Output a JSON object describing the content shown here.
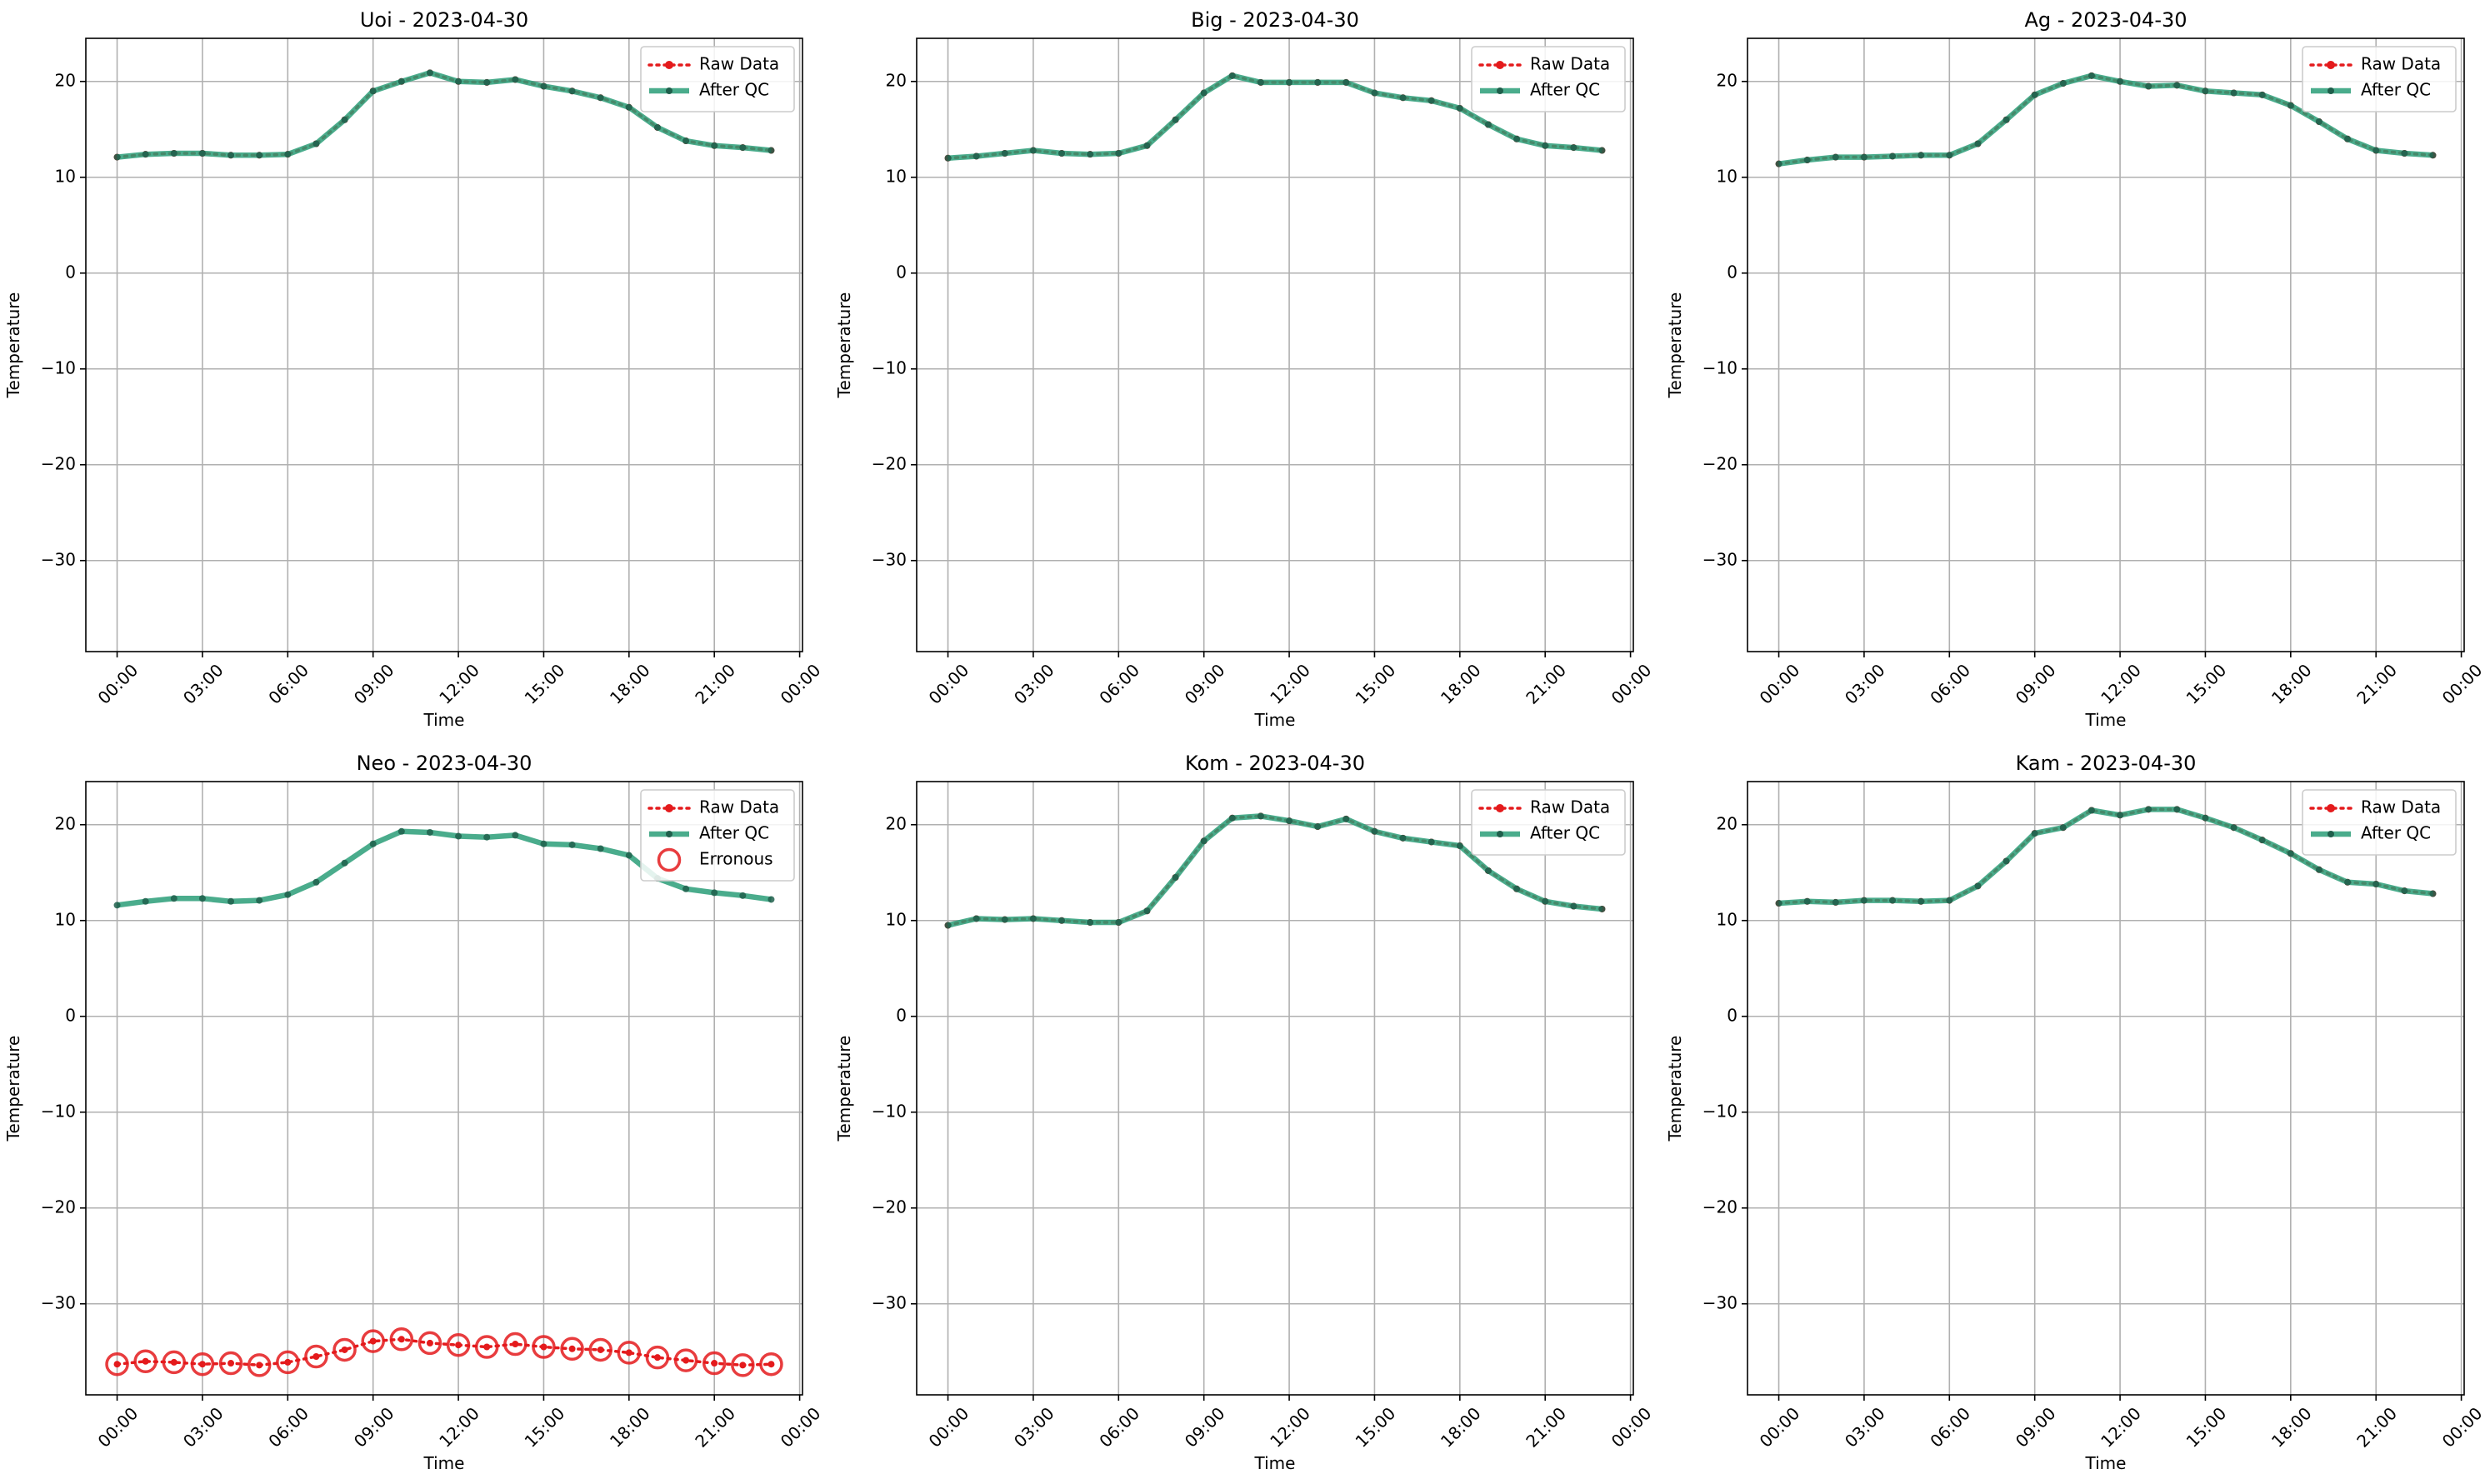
{
  "chart_data": [
    {
      "type": "line",
      "title": "Uoi - 2023-04-30",
      "xlabel": "Time",
      "ylabel": "Temperature",
      "ylim": [
        -39.5,
        24.5
      ],
      "xlim": [
        -1.1,
        24.1
      ],
      "x_ticks": [
        {
          "value": 0,
          "label": "00:00"
        },
        {
          "value": 3,
          "label": "03:00"
        },
        {
          "value": 6,
          "label": "06:00"
        },
        {
          "value": 9,
          "label": "09:00"
        },
        {
          "value": 12,
          "label": "12:00"
        },
        {
          "value": 15,
          "label": "15:00"
        },
        {
          "value": 18,
          "label": "18:00"
        },
        {
          "value": 21,
          "label": "21:00"
        },
        {
          "value": 24,
          "label": "00:00"
        }
      ],
      "y_ticks": [
        {
          "value": 20,
          "label": "20"
        },
        {
          "value": 10,
          "label": "10"
        },
        {
          "value": 0,
          "label": "0"
        },
        {
          "value": -10,
          "label": "−10"
        },
        {
          "value": -20,
          "label": "−20"
        },
        {
          "value": -30,
          "label": "−30"
        }
      ],
      "grid": true,
      "legend_position": "top-right",
      "x": [
        0,
        1,
        2,
        3,
        4,
        5,
        6,
        7,
        8,
        9,
        10,
        11,
        12,
        13,
        14,
        15,
        16,
        17,
        18,
        19,
        20,
        21,
        22,
        23
      ],
      "series": [
        {
          "name": "Raw Data",
          "style": "raw",
          "values": [
            12.1,
            12.4,
            12.5,
            12.5,
            12.3,
            12.3,
            12.4,
            13.5,
            16.0,
            19.0,
            20.0,
            20.9,
            20.0,
            19.9,
            20.2,
            19.5,
            19.0,
            18.3,
            17.3,
            15.2,
            13.8,
            13.3,
            13.1,
            12.8
          ]
        },
        {
          "name": "After QC",
          "style": "qc",
          "values": [
            12.1,
            12.4,
            12.5,
            12.5,
            12.3,
            12.3,
            12.4,
            13.5,
            16.0,
            19.0,
            20.0,
            20.9,
            20.0,
            19.9,
            20.2,
            19.5,
            19.0,
            18.3,
            17.3,
            15.2,
            13.8,
            13.3,
            13.1,
            12.8
          ]
        }
      ]
    },
    {
      "type": "line",
      "title": "Big - 2023-04-30",
      "xlabel": "Time",
      "ylabel": "Temperature",
      "ylim": [
        -39.5,
        24.5
      ],
      "xlim": [
        -1.1,
        24.1
      ],
      "x_ticks": [
        {
          "value": 0,
          "label": "00:00"
        },
        {
          "value": 3,
          "label": "03:00"
        },
        {
          "value": 6,
          "label": "06:00"
        },
        {
          "value": 9,
          "label": "09:00"
        },
        {
          "value": 12,
          "label": "12:00"
        },
        {
          "value": 15,
          "label": "15:00"
        },
        {
          "value": 18,
          "label": "18:00"
        },
        {
          "value": 21,
          "label": "21:00"
        },
        {
          "value": 24,
          "label": "00:00"
        }
      ],
      "y_ticks": [
        {
          "value": 20,
          "label": "20"
        },
        {
          "value": 10,
          "label": "10"
        },
        {
          "value": 0,
          "label": "0"
        },
        {
          "value": -10,
          "label": "−10"
        },
        {
          "value": -20,
          "label": "−20"
        },
        {
          "value": -30,
          "label": "−30"
        }
      ],
      "grid": true,
      "legend_position": "top-right",
      "x": [
        0,
        1,
        2,
        3,
        4,
        5,
        6,
        7,
        8,
        9,
        10,
        11,
        12,
        13,
        14,
        15,
        16,
        17,
        18,
        19,
        20,
        21,
        22,
        23
      ],
      "series": [
        {
          "name": "Raw Data",
          "style": "raw",
          "values": [
            12.0,
            12.2,
            12.5,
            12.8,
            12.5,
            12.4,
            12.5,
            13.3,
            16.0,
            18.8,
            20.6,
            19.9,
            19.9,
            19.9,
            19.9,
            18.8,
            18.3,
            18.0,
            17.2,
            15.5,
            14.0,
            13.3,
            13.1,
            12.8
          ]
        },
        {
          "name": "After QC",
          "style": "qc",
          "values": [
            12.0,
            12.2,
            12.5,
            12.8,
            12.5,
            12.4,
            12.5,
            13.3,
            16.0,
            18.8,
            20.6,
            19.9,
            19.9,
            19.9,
            19.9,
            18.8,
            18.3,
            18.0,
            17.2,
            15.5,
            14.0,
            13.3,
            13.1,
            12.8
          ]
        }
      ]
    },
    {
      "type": "line",
      "title": "Ag - 2023-04-30",
      "xlabel": "Time",
      "ylabel": "Temperature",
      "ylim": [
        -39.5,
        24.5
      ],
      "xlim": [
        -1.1,
        24.1
      ],
      "x_ticks": [
        {
          "value": 0,
          "label": "00:00"
        },
        {
          "value": 3,
          "label": "03:00"
        },
        {
          "value": 6,
          "label": "06:00"
        },
        {
          "value": 9,
          "label": "09:00"
        },
        {
          "value": 12,
          "label": "12:00"
        },
        {
          "value": 15,
          "label": "15:00"
        },
        {
          "value": 18,
          "label": "18:00"
        },
        {
          "value": 21,
          "label": "21:00"
        },
        {
          "value": 24,
          "label": "00:00"
        }
      ],
      "y_ticks": [
        {
          "value": 20,
          "label": "20"
        },
        {
          "value": 10,
          "label": "10"
        },
        {
          "value": 0,
          "label": "0"
        },
        {
          "value": -10,
          "label": "−10"
        },
        {
          "value": -20,
          "label": "−20"
        },
        {
          "value": -30,
          "label": "−30"
        }
      ],
      "grid": true,
      "legend_position": "top-right",
      "x": [
        0,
        1,
        2,
        3,
        4,
        5,
        6,
        7,
        8,
        9,
        10,
        11,
        12,
        13,
        14,
        15,
        16,
        17,
        18,
        19,
        20,
        21,
        22,
        23
      ],
      "series": [
        {
          "name": "Raw Data",
          "style": "raw",
          "values": [
            11.4,
            11.8,
            12.1,
            12.1,
            12.2,
            12.3,
            12.3,
            13.5,
            16.0,
            18.6,
            19.8,
            20.6,
            20.0,
            19.5,
            19.6,
            19.0,
            18.8,
            18.6,
            17.5,
            15.8,
            14.0,
            12.8,
            12.5,
            12.3
          ]
        },
        {
          "name": "After QC",
          "style": "qc",
          "values": [
            11.4,
            11.8,
            12.1,
            12.1,
            12.2,
            12.3,
            12.3,
            13.5,
            16.0,
            18.6,
            19.8,
            20.6,
            20.0,
            19.5,
            19.6,
            19.0,
            18.8,
            18.6,
            17.5,
            15.8,
            14.0,
            12.8,
            12.5,
            12.3
          ]
        }
      ]
    },
    {
      "type": "line",
      "title": "Neo - 2023-04-30",
      "xlabel": "Time",
      "ylabel": "Temperature",
      "ylim": [
        -39.5,
        24.5
      ],
      "xlim": [
        -1.1,
        24.1
      ],
      "x_ticks": [
        {
          "value": 0,
          "label": "00:00"
        },
        {
          "value": 3,
          "label": "03:00"
        },
        {
          "value": 6,
          "label": "06:00"
        },
        {
          "value": 9,
          "label": "09:00"
        },
        {
          "value": 12,
          "label": "12:00"
        },
        {
          "value": 15,
          "label": "15:00"
        },
        {
          "value": 18,
          "label": "18:00"
        },
        {
          "value": 21,
          "label": "21:00"
        },
        {
          "value": 24,
          "label": "00:00"
        }
      ],
      "y_ticks": [
        {
          "value": 20,
          "label": "20"
        },
        {
          "value": 10,
          "label": "10"
        },
        {
          "value": 0,
          "label": "0"
        },
        {
          "value": -10,
          "label": "−10"
        },
        {
          "value": -20,
          "label": "−20"
        },
        {
          "value": -30,
          "label": "−30"
        }
      ],
      "grid": true,
      "legend_position": "top-right",
      "x": [
        0,
        1,
        2,
        3,
        4,
        5,
        6,
        7,
        8,
        9,
        10,
        11,
        12,
        13,
        14,
        15,
        16,
        17,
        18,
        19,
        20,
        21,
        22,
        23
      ],
      "series": [
        {
          "name": "Raw Data",
          "style": "raw",
          "values": [
            -36.3,
            -36.0,
            -36.1,
            -36.3,
            -36.2,
            -36.4,
            -36.1,
            -35.5,
            -34.8,
            -33.9,
            -33.7,
            -34.1,
            -34.3,
            -34.5,
            -34.2,
            -34.5,
            -34.7,
            -34.8,
            -35.1,
            -35.6,
            -35.9,
            -36.2,
            -36.4,
            -36.3
          ]
        },
        {
          "name": "After QC",
          "style": "qc-line",
          "values": [
            11.6,
            12.0,
            12.3,
            12.3,
            12.0,
            12.1,
            12.7,
            14.0,
            16.0,
            18.0,
            19.3,
            19.2,
            18.8,
            18.7,
            18.9,
            18.0,
            17.9,
            17.5,
            16.8,
            14.4,
            13.3,
            12.9,
            12.6,
            12.2
          ]
        },
        {
          "name": "Erronous",
          "style": "error",
          "values": [
            -36.3,
            -36.0,
            -36.1,
            -36.3,
            -36.2,
            -36.4,
            -36.1,
            -35.5,
            -34.8,
            -33.9,
            -33.7,
            -34.1,
            -34.3,
            -34.5,
            -34.2,
            -34.5,
            -34.7,
            -34.8,
            -35.1,
            -35.6,
            -35.9,
            -36.2,
            -36.4,
            -36.3
          ]
        }
      ]
    },
    {
      "type": "line",
      "title": "Kom - 2023-04-30",
      "xlabel": "Time",
      "ylabel": "Temperature",
      "ylim": [
        -39.5,
        24.5
      ],
      "xlim": [
        -1.1,
        24.1
      ],
      "x_ticks": [
        {
          "value": 0,
          "label": "00:00"
        },
        {
          "value": 3,
          "label": "03:00"
        },
        {
          "value": 6,
          "label": "06:00"
        },
        {
          "value": 9,
          "label": "09:00"
        },
        {
          "value": 12,
          "label": "12:00"
        },
        {
          "value": 15,
          "label": "15:00"
        },
        {
          "value": 18,
          "label": "18:00"
        },
        {
          "value": 21,
          "label": "21:00"
        },
        {
          "value": 24,
          "label": "00:00"
        }
      ],
      "y_ticks": [
        {
          "value": 20,
          "label": "20"
        },
        {
          "value": 10,
          "label": "10"
        },
        {
          "value": 0,
          "label": "0"
        },
        {
          "value": -10,
          "label": "−10"
        },
        {
          "value": -20,
          "label": "−20"
        },
        {
          "value": -30,
          "label": "−30"
        }
      ],
      "grid": true,
      "legend_position": "top-right",
      "x": [
        0,
        1,
        2,
        3,
        4,
        5,
        6,
        7,
        8,
        9,
        10,
        11,
        12,
        13,
        14,
        15,
        16,
        17,
        18,
        19,
        20,
        21,
        22,
        23
      ],
      "series": [
        {
          "name": "Raw Data",
          "style": "raw",
          "values": [
            9.5,
            10.2,
            10.1,
            10.2,
            10.0,
            9.8,
            9.8,
            11.0,
            14.5,
            18.3,
            20.7,
            20.9,
            20.4,
            19.8,
            20.6,
            19.3,
            18.6,
            18.2,
            17.8,
            15.2,
            13.3,
            12.0,
            11.5,
            11.2
          ]
        },
        {
          "name": "After QC",
          "style": "qc",
          "values": [
            9.5,
            10.2,
            10.1,
            10.2,
            10.0,
            9.8,
            9.8,
            11.0,
            14.5,
            18.3,
            20.7,
            20.9,
            20.4,
            19.8,
            20.6,
            19.3,
            18.6,
            18.2,
            17.8,
            15.2,
            13.3,
            12.0,
            11.5,
            11.2
          ]
        }
      ]
    },
    {
      "type": "line",
      "title": "Kam - 2023-04-30",
      "xlabel": "Time",
      "ylabel": "Temperature",
      "ylim": [
        -39.5,
        24.5
      ],
      "xlim": [
        -1.1,
        24.1
      ],
      "x_ticks": [
        {
          "value": 0,
          "label": "00:00"
        },
        {
          "value": 3,
          "label": "03:00"
        },
        {
          "value": 6,
          "label": "06:00"
        },
        {
          "value": 9,
          "label": "09:00"
        },
        {
          "value": 12,
          "label": "12:00"
        },
        {
          "value": 15,
          "label": "15:00"
        },
        {
          "value": 18,
          "label": "18:00"
        },
        {
          "value": 21,
          "label": "21:00"
        },
        {
          "value": 24,
          "label": "00:00"
        }
      ],
      "y_ticks": [
        {
          "value": 20,
          "label": "20"
        },
        {
          "value": 10,
          "label": "10"
        },
        {
          "value": 0,
          "label": "0"
        },
        {
          "value": -10,
          "label": "−10"
        },
        {
          "value": -20,
          "label": "−20"
        },
        {
          "value": -30,
          "label": "−30"
        }
      ],
      "grid": true,
      "legend_position": "top-right",
      "x": [
        0,
        1,
        2,
        3,
        4,
        5,
        6,
        7,
        8,
        9,
        10,
        11,
        12,
        13,
        14,
        15,
        16,
        17,
        18,
        19,
        20,
        21,
        22,
        23
      ],
      "series": [
        {
          "name": "Raw Data",
          "style": "raw",
          "values": [
            11.8,
            12.0,
            11.9,
            12.1,
            12.1,
            12.0,
            12.1,
            13.6,
            16.2,
            19.1,
            19.7,
            21.5,
            21.0,
            21.6,
            21.6,
            20.7,
            19.7,
            18.4,
            17.0,
            15.3,
            14.0,
            13.8,
            13.1,
            12.8
          ]
        },
        {
          "name": "After QC",
          "style": "qc",
          "values": [
            11.8,
            12.0,
            11.9,
            12.1,
            12.1,
            12.0,
            12.1,
            13.6,
            16.2,
            19.1,
            19.7,
            21.5,
            21.0,
            21.6,
            21.6,
            20.7,
            19.7,
            18.4,
            17.0,
            15.3,
            14.0,
            13.8,
            13.1,
            12.8
          ]
        }
      ]
    }
  ],
  "colors": {
    "raw": "#e41a1c",
    "qc": "#2a9d78",
    "qc_marker": "#1f5f4b",
    "error": "#e41a1c",
    "grid": "#b0b0b0",
    "axis": "#000000",
    "legend_border": "#cccccc"
  }
}
